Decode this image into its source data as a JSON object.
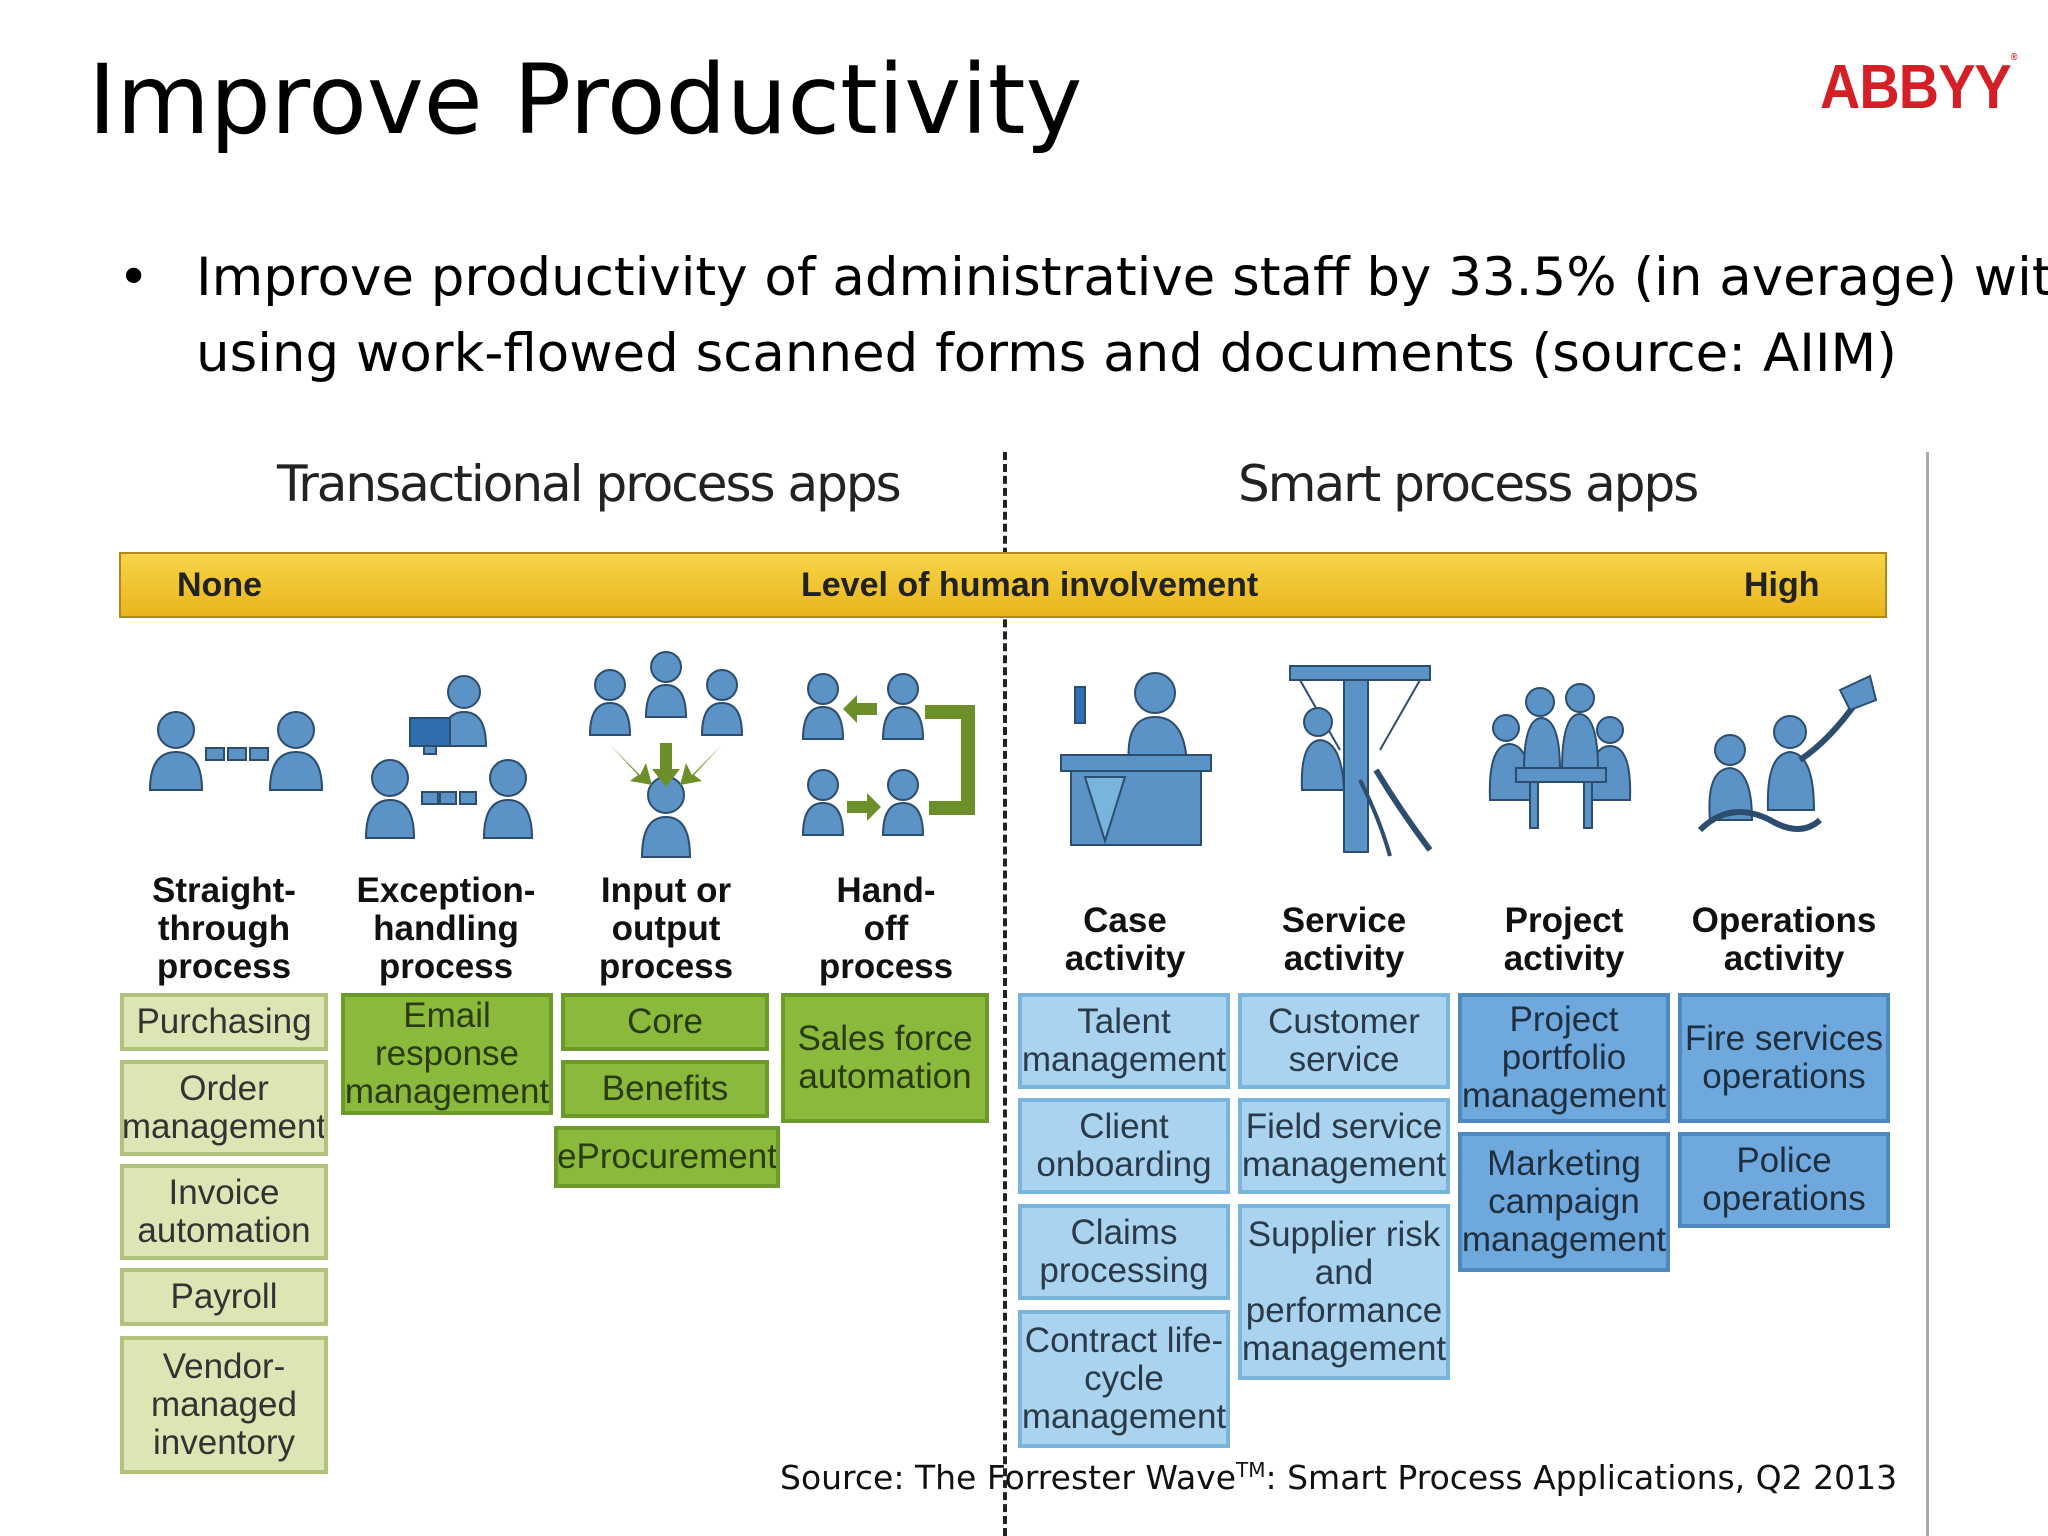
{
  "slide": {
    "title": "Improve Productivity",
    "logo": "ABBYY",
    "bullet_symbol": "•",
    "bullet": "Improve productivity of administrative staff by 33.5% (in average) with using work-flowed scanned forms and documents (source: AIIM)"
  },
  "diagram": {
    "left_section": "Transactional process apps",
    "right_section": "Smart process apps",
    "band": {
      "left": "None",
      "center": "Level of human involvement",
      "right": "High"
    },
    "columns": [
      {
        "title": [
          "Straight-",
          "through",
          "process"
        ],
        "items": [
          "Purchasing",
          "Order management",
          "Invoice automation",
          "Payroll",
          "Vendor-managed inventory"
        ]
      },
      {
        "title": [
          "Exception-",
          "handling",
          "process"
        ],
        "items": [
          "Email response management"
        ]
      },
      {
        "title": [
          "Input or",
          "output",
          "process"
        ],
        "items": [
          "Core",
          "Benefits",
          "eProcurement"
        ]
      },
      {
        "title": [
          "Hand-",
          "off",
          "process"
        ],
        "items": [
          "Sales force automation"
        ]
      },
      {
        "title": [
          "Case",
          "activity"
        ],
        "items": [
          "Talent management",
          "Client onboarding",
          "Claims processing",
          "Contract life-cycle management"
        ]
      },
      {
        "title": [
          "Service",
          "activity"
        ],
        "items": [
          "Customer service",
          "Field service management",
          "Supplier risk and performance management"
        ]
      },
      {
        "title": [
          "Project",
          "activity"
        ],
        "items": [
          "Project portfolio management",
          "Marketing campaign management"
        ]
      },
      {
        "title": [
          "Operations",
          "activity"
        ],
        "items": [
          "Fire services operations",
          "Police operations"
        ]
      }
    ],
    "source": {
      "prefix": "Source: The Forrester Wave",
      "tm": "TM",
      "suffix": ":  Smart Process Applications, Q2 2013"
    }
  }
}
